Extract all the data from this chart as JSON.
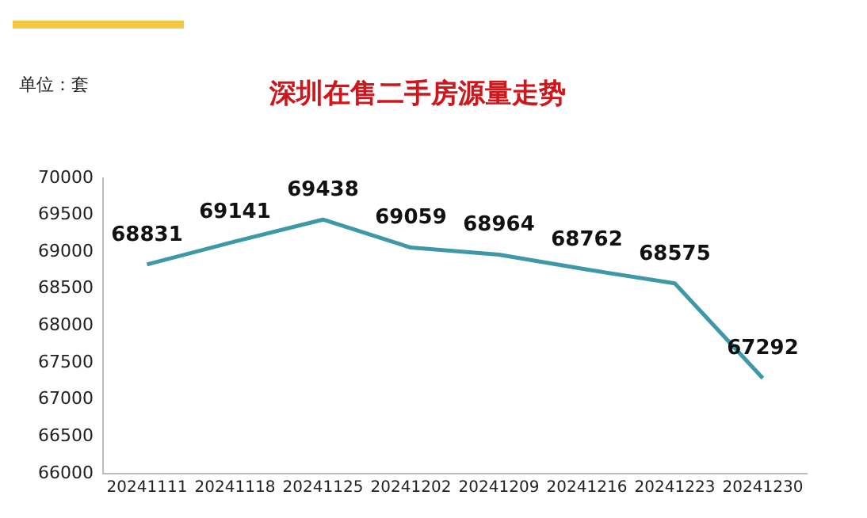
{
  "chart_data": {
    "type": "line",
    "title": "深圳在售二手房源量走势",
    "ylabel": "单位：套",
    "categories": [
      "20241111",
      "20241118",
      "20241125",
      "20241202",
      "20241209",
      "20241216",
      "20241223",
      "20241230"
    ],
    "series": [
      {
        "color": "#3f98a8",
        "values": [
          68831,
          69141,
          69438,
          69059,
          68964,
          68762,
          68575,
          67292
        ]
      }
    ],
    "ylim": [
      66000,
      70000
    ],
    "yticks": [
      66000,
      66500,
      67000,
      67500,
      68000,
      68500,
      69000,
      69500,
      70000
    ],
    "grid": false,
    "legend": false,
    "marker": "none",
    "line_style": "solid",
    "data_labels": true
  }
}
